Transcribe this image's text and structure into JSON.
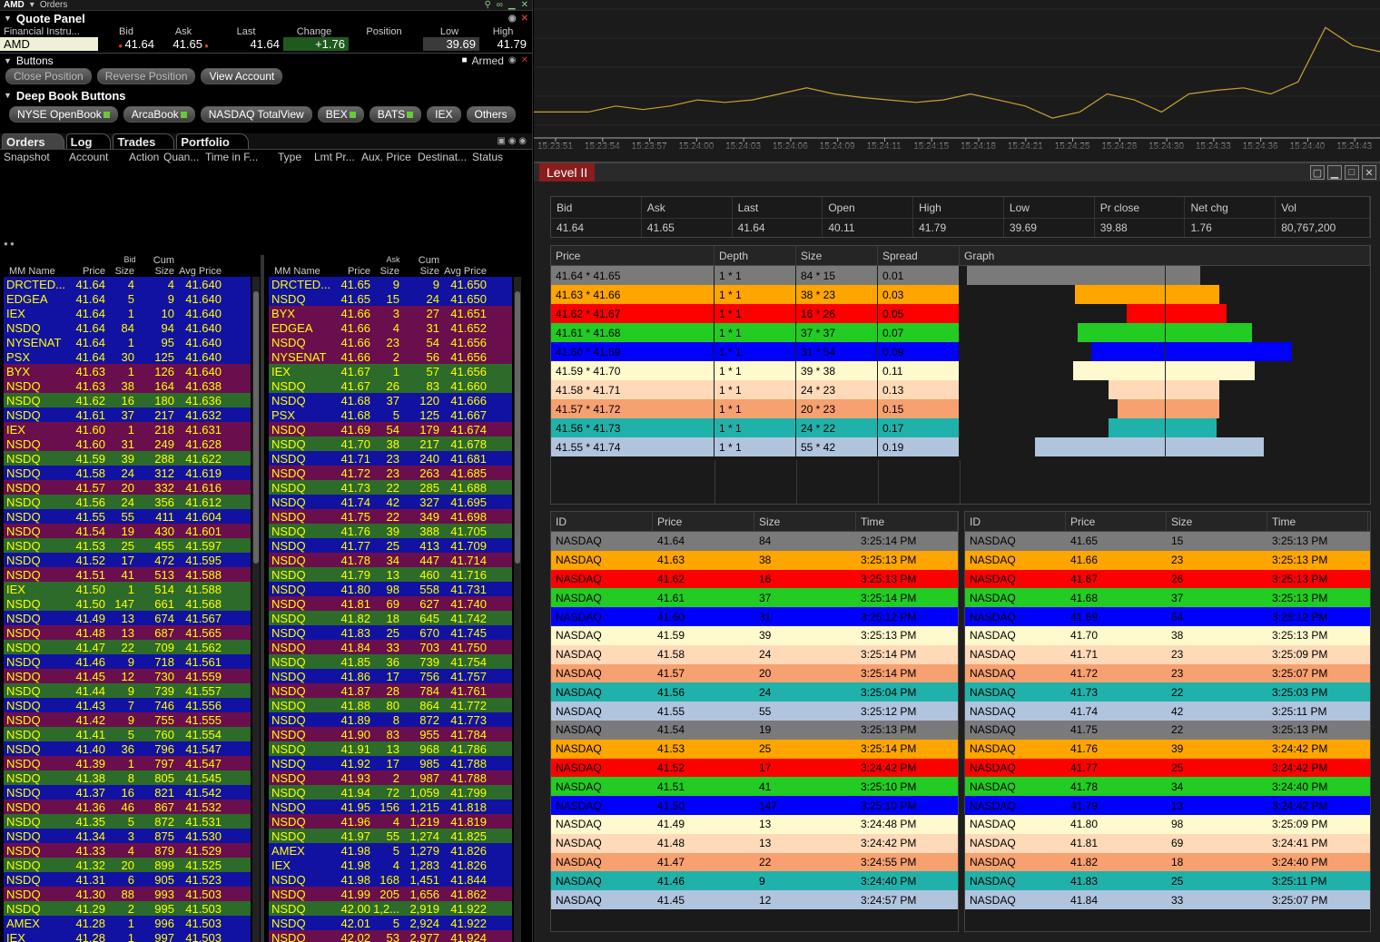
{
  "window": {
    "symbol": "AMD",
    "title": "Orders"
  },
  "quote_panel": {
    "title": "Quote Panel",
    "headers": [
      "Financial Instru...",
      "Bid",
      "Ask",
      "Last",
      "Change",
      "Position",
      "Low",
      "High"
    ],
    "row": {
      "instrument": "AMD",
      "bid": "41.64",
      "ask": "41.65",
      "last": "41.64",
      "change": "+1.76",
      "position": "",
      "low": "39.69",
      "high": "41.79"
    }
  },
  "buttons": {
    "title": "Buttons",
    "armed": "Armed",
    "close": "Close Position",
    "reverse": "Reverse Position",
    "view": "View Account"
  },
  "deep_book": {
    "title": "Deep Book Buttons",
    "items": [
      "NYSE OpenBook",
      "ArcaBook",
      "NASDAQ TotalView",
      "BEX",
      "BATS",
      "IEX",
      "Others"
    ]
  },
  "order_tabs": [
    "Orders",
    "Log",
    "Trades",
    "Portfolio"
  ],
  "order_headers": [
    "Snapshot",
    "Account",
    "Action",
    "Quan...",
    "Time in F...",
    "Type",
    "Lmt Pr...",
    "Aux. Price",
    "Destinat...",
    "Status"
  ],
  "book_headers": [
    "MM Name",
    "Price",
    "Size",
    "Cum Size",
    "Avg Price"
  ],
  "bid_label": "Bid",
  "ask_label": "Ask",
  "bid_rows": [
    [
      "DRCTED...",
      "41.64",
      "4",
      "4",
      "41.640",
      "blue"
    ],
    [
      "EDGEA",
      "41.64",
      "5",
      "9",
      "41.640",
      "blue"
    ],
    [
      "IEX",
      "41.64",
      "1",
      "10",
      "41.640",
      "blue"
    ],
    [
      "NSDQ",
      "41.64",
      "84",
      "94",
      "41.640",
      "blue"
    ],
    [
      "NYSENAT",
      "41.64",
      "1",
      "95",
      "41.640",
      "blue"
    ],
    [
      "PSX",
      "41.64",
      "30",
      "125",
      "41.640",
      "blue"
    ],
    [
      "BYX",
      "41.63",
      "1",
      "126",
      "41.640",
      "purple"
    ],
    [
      "NSDQ",
      "41.63",
      "38",
      "164",
      "41.638",
      "purple"
    ],
    [
      "NSDQ",
      "41.62",
      "16",
      "180",
      "41.636",
      "green"
    ],
    [
      "NSDQ",
      "41.61",
      "37",
      "217",
      "41.632",
      "blue"
    ],
    [
      "IEX",
      "41.60",
      "1",
      "218",
      "41.631",
      "purple"
    ],
    [
      "NSDQ",
      "41.60",
      "31",
      "249",
      "41.628",
      "purple"
    ],
    [
      "NSDQ",
      "41.59",
      "39",
      "288",
      "41.622",
      "green"
    ],
    [
      "NSDQ",
      "41.58",
      "24",
      "312",
      "41.619",
      "blue"
    ],
    [
      "NSDQ",
      "41.57",
      "20",
      "332",
      "41.616",
      "purple"
    ],
    [
      "NSDQ",
      "41.56",
      "24",
      "356",
      "41.612",
      "green"
    ],
    [
      "NSDQ",
      "41.55",
      "55",
      "411",
      "41.604",
      "blue"
    ],
    [
      "NSDQ",
      "41.54",
      "19",
      "430",
      "41.601",
      "purple"
    ],
    [
      "NSDQ",
      "41.53",
      "25",
      "455",
      "41.597",
      "green"
    ],
    [
      "NSDQ",
      "41.52",
      "17",
      "472",
      "41.595",
      "blue"
    ],
    [
      "NSDQ",
      "41.51",
      "41",
      "513",
      "41.588",
      "purple"
    ],
    [
      "IEX",
      "41.50",
      "1",
      "514",
      "41.588",
      "green"
    ],
    [
      "NSDQ",
      "41.50",
      "147",
      "661",
      "41.568",
      "green"
    ],
    [
      "NSDQ",
      "41.49",
      "13",
      "674",
      "41.567",
      "blue"
    ],
    [
      "NSDQ",
      "41.48",
      "13",
      "687",
      "41.565",
      "purple"
    ],
    [
      "NSDQ",
      "41.47",
      "22",
      "709",
      "41.562",
      "green"
    ],
    [
      "NSDQ",
      "41.46",
      "9",
      "718",
      "41.561",
      "blue"
    ],
    [
      "NSDQ",
      "41.45",
      "12",
      "730",
      "41.559",
      "purple"
    ],
    [
      "NSDQ",
      "41.44",
      "9",
      "739",
      "41.557",
      "green"
    ],
    [
      "NSDQ",
      "41.43",
      "7",
      "746",
      "41.556",
      "blue"
    ],
    [
      "NSDQ",
      "41.42",
      "9",
      "755",
      "41.555",
      "purple"
    ],
    [
      "NSDQ",
      "41.41",
      "5",
      "760",
      "41.554",
      "green"
    ],
    [
      "NSDQ",
      "41.40",
      "36",
      "796",
      "41.547",
      "blue"
    ],
    [
      "NSDQ",
      "41.39",
      "1",
      "797",
      "41.547",
      "purple"
    ],
    [
      "NSDQ",
      "41.38",
      "8",
      "805",
      "41.545",
      "green"
    ],
    [
      "NSDQ",
      "41.37",
      "16",
      "821",
      "41.542",
      "blue"
    ],
    [
      "NSDQ",
      "41.36",
      "46",
      "867",
      "41.532",
      "purple"
    ],
    [
      "NSDQ",
      "41.35",
      "5",
      "872",
      "41.531",
      "green"
    ],
    [
      "NSDQ",
      "41.34",
      "3",
      "875",
      "41.530",
      "blue"
    ],
    [
      "NSDQ",
      "41.33",
      "4",
      "879",
      "41.529",
      "purple"
    ],
    [
      "NSDQ",
      "41.32",
      "20",
      "899",
      "41.525",
      "green"
    ],
    [
      "NSDQ",
      "41.31",
      "6",
      "905",
      "41.523",
      "blue"
    ],
    [
      "NSDQ",
      "41.30",
      "88",
      "993",
      "41.503",
      "purple"
    ],
    [
      "NSDQ",
      "41.29",
      "2",
      "995",
      "41.503",
      "green"
    ],
    [
      "AMEX",
      "41.28",
      "1",
      "996",
      "41.503",
      "blue"
    ],
    [
      "IEX",
      "41.28",
      "1",
      "997",
      "41.503",
      "blue"
    ]
  ],
  "ask_rows": [
    [
      "DRCTED...",
      "41.65",
      "9",
      "9",
      "41.650",
      "blue"
    ],
    [
      "NSDQ",
      "41.65",
      "15",
      "24",
      "41.650",
      "blue"
    ],
    [
      "BYX",
      "41.66",
      "3",
      "27",
      "41.651",
      "purple"
    ],
    [
      "EDGEA",
      "41.66",
      "4",
      "31",
      "41.652",
      "purple"
    ],
    [
      "NSDQ",
      "41.66",
      "23",
      "54",
      "41.656",
      "purple"
    ],
    [
      "NYSENAT",
      "41.66",
      "2",
      "56",
      "41.656",
      "purple"
    ],
    [
      "IEX",
      "41.67",
      "1",
      "57",
      "41.656",
      "green"
    ],
    [
      "NSDQ",
      "41.67",
      "26",
      "83",
      "41.660",
      "green"
    ],
    [
      "NSDQ",
      "41.68",
      "37",
      "120",
      "41.666",
      "blue"
    ],
    [
      "PSX",
      "41.68",
      "5",
      "125",
      "41.667",
      "blue"
    ],
    [
      "NSDQ",
      "41.69",
      "54",
      "179",
      "41.674",
      "purple"
    ],
    [
      "NSDQ",
      "41.70",
      "38",
      "217",
      "41.678",
      "green"
    ],
    [
      "NSDQ",
      "41.71",
      "23",
      "240",
      "41.681",
      "blue"
    ],
    [
      "NSDQ",
      "41.72",
      "23",
      "263",
      "41.685",
      "purple"
    ],
    [
      "NSDQ",
      "41.73",
      "22",
      "285",
      "41.688",
      "green"
    ],
    [
      "NSDQ",
      "41.74",
      "42",
      "327",
      "41.695",
      "blue"
    ],
    [
      "NSDQ",
      "41.75",
      "22",
      "349",
      "41.698",
      "purple"
    ],
    [
      "NSDQ",
      "41.76",
      "39",
      "388",
      "41.705",
      "green"
    ],
    [
      "NSDQ",
      "41.77",
      "25",
      "413",
      "41.709",
      "blue"
    ],
    [
      "NSDQ",
      "41.78",
      "34",
      "447",
      "41.714",
      "purple"
    ],
    [
      "NSDQ",
      "41.79",
      "13",
      "460",
      "41.716",
      "green"
    ],
    [
      "NSDQ",
      "41.80",
      "98",
      "558",
      "41.731",
      "blue"
    ],
    [
      "NSDQ",
      "41.81",
      "69",
      "627",
      "41.740",
      "purple"
    ],
    [
      "NSDQ",
      "41.82",
      "18",
      "645",
      "41.742",
      "green"
    ],
    [
      "NSDQ",
      "41.83",
      "25",
      "670",
      "41.745",
      "blue"
    ],
    [
      "NSDQ",
      "41.84",
      "33",
      "703",
      "41.750",
      "purple"
    ],
    [
      "NSDQ",
      "41.85",
      "36",
      "739",
      "41.754",
      "green"
    ],
    [
      "NSDQ",
      "41.86",
      "17",
      "756",
      "41.757",
      "blue"
    ],
    [
      "NSDQ",
      "41.87",
      "28",
      "784",
      "41.761",
      "purple"
    ],
    [
      "NSDQ",
      "41.88",
      "80",
      "864",
      "41.772",
      "green"
    ],
    [
      "NSDQ",
      "41.89",
      "8",
      "872",
      "41.773",
      "blue"
    ],
    [
      "NSDQ",
      "41.90",
      "83",
      "955",
      "41.784",
      "purple"
    ],
    [
      "NSDQ",
      "41.91",
      "13",
      "968",
      "41.786",
      "green"
    ],
    [
      "NSDQ",
      "41.92",
      "17",
      "985",
      "41.788",
      "blue"
    ],
    [
      "NSDQ",
      "41.93",
      "2",
      "987",
      "41.788",
      "purple"
    ],
    [
      "NSDQ",
      "41.94",
      "72",
      "1,059",
      "41.799",
      "green"
    ],
    [
      "NSDQ",
      "41.95",
      "156",
      "1,215",
      "41.818",
      "blue"
    ],
    [
      "NSDQ",
      "41.96",
      "4",
      "1,219",
      "41.819",
      "purple"
    ],
    [
      "NSDQ",
      "41.97",
      "55",
      "1,274",
      "41.825",
      "green"
    ],
    [
      "AMEX",
      "41.98",
      "5",
      "1,279",
      "41.826",
      "blue"
    ],
    [
      "IEX",
      "41.98",
      "4",
      "1,283",
      "41.826",
      "blue"
    ],
    [
      "NSDQ",
      "41.98",
      "168",
      "1,451",
      "41.844",
      "blue"
    ],
    [
      "NSDQ",
      "41.99",
      "205",
      "1,656",
      "41.862",
      "purple"
    ],
    [
      "NSDQ",
      "42.00",
      "1,2...",
      "2,919",
      "41.922",
      "green"
    ],
    [
      "NSDQ",
      "42.01",
      "5",
      "2,924",
      "41.922",
      "blue"
    ],
    [
      "NSDQ",
      "42.02",
      "53",
      "2,977",
      "41.924",
      "purple"
    ]
  ],
  "chart": {
    "x_labels": [
      "15:23:51",
      "15:23:54",
      "15:23:57",
      "15:24:00",
      "15:24:03",
      "15:24:06",
      "15:24:09",
      "15:24:11",
      "15:24:15",
      "15:24:18",
      "15:24:21",
      "15:24:25",
      "15:24:28",
      "15:24:30",
      "15:24:33",
      "15:24:36",
      "15:24:40",
      "15:24:43"
    ],
    "values": [
      0.2,
      0.2,
      0.2,
      0.25,
      0.22,
      0.25,
      0.3,
      0.28,
      0.3,
      0.35,
      0.4,
      0.35,
      0.32,
      0.3,
      0.28,
      0.3,
      0.35,
      0.3,
      0.25,
      0.15,
      0.2,
      0.35,
      0.3,
      0.2,
      0.35,
      0.38,
      0.4,
      0.35,
      0.45,
      0.9,
      0.75,
      0.7
    ],
    "line_color": "#c9a030"
  },
  "level2": {
    "title": "Level II",
    "summary_headers": [
      "Bid",
      "Ask",
      "Last",
      "Open",
      "High",
      "Low",
      "Pr close",
      "Net chg",
      "Vol"
    ],
    "summary_values": [
      "41.64",
      "41.65",
      "41.64",
      "40.11",
      "41.79",
      "39.69",
      "39.88",
      "1.76",
      "80,767,200"
    ],
    "depth_headers": [
      "Price",
      "Depth",
      "Size",
      "Spread",
      "Graph"
    ],
    "depth_rows": [
      {
        "price": "41.64 * 41.65",
        "depth": "1 * 1",
        "size": "84 * 15",
        "spread": "0.01",
        "bid": 84,
        "ask": 15,
        "color": "gray"
      },
      {
        "price": "41.63 * 41.66",
        "depth": "1 * 1",
        "size": "38 * 23",
        "spread": "0.03",
        "bid": 38,
        "ask": 23,
        "color": "orange"
      },
      {
        "price": "41.62 * 41.67",
        "depth": "1 * 1",
        "size": "16 * 26",
        "spread": "0.05",
        "bid": 16,
        "ask": 26,
        "color": "red"
      },
      {
        "price": "41.61 * 41.68",
        "depth": "1 * 1",
        "size": "37 * 37",
        "spread": "0.07",
        "bid": 37,
        "ask": 37,
        "color": "green"
      },
      {
        "price": "41.60 * 41.69",
        "depth": "1 * 1",
        "size": "31 * 54",
        "spread": "0.09",
        "bid": 31,
        "ask": 54,
        "color": "blue"
      },
      {
        "price": "41.59 * 41.70",
        "depth": "1 * 1",
        "size": "39 * 38",
        "spread": "0.11",
        "bid": 39,
        "ask": 38,
        "color": "cream"
      },
      {
        "price": "41.58 * 41.71",
        "depth": "1 * 1",
        "size": "24 * 23",
        "spread": "0.13",
        "bid": 24,
        "ask": 23,
        "color": "peach"
      },
      {
        "price": "41.57 * 41.72",
        "depth": "1 * 1",
        "size": "20 * 23",
        "spread": "0.15",
        "bid": 20,
        "ask": 23,
        "color": "salmon"
      },
      {
        "price": "41.56 * 41.73",
        "depth": "1 * 1",
        "size": "24 * 22",
        "spread": "0.17",
        "bid": 24,
        "ask": 22,
        "color": "teal"
      },
      {
        "price": "41.55 * 41.74",
        "depth": "1 * 1",
        "size": "55 * 42",
        "spread": "0.19",
        "bid": 55,
        "ask": 42,
        "color": "steel"
      }
    ],
    "trade_headers": [
      "ID",
      "Price",
      "Size",
      "Time"
    ],
    "bid_trades": [
      [
        "NASDAQ",
        "41.64",
        "84",
        "3:25:14 PM",
        "gray"
      ],
      [
        "NASDAQ",
        "41.63",
        "38",
        "3:25:13 PM",
        "orange"
      ],
      [
        "NASDAQ",
        "41.62",
        "16",
        "3:25:13 PM",
        "red"
      ],
      [
        "NASDAQ",
        "41.61",
        "37",
        "3:25:14 PM",
        "green"
      ],
      [
        "NASDAQ",
        "41.60",
        "31",
        "3:25:12 PM",
        "blue"
      ],
      [
        "NASDAQ",
        "41.59",
        "39",
        "3:25:13 PM",
        "cream"
      ],
      [
        "NASDAQ",
        "41.58",
        "24",
        "3:25:14 PM",
        "peach"
      ],
      [
        "NASDAQ",
        "41.57",
        "20",
        "3:25:14 PM",
        "salmon"
      ],
      [
        "NASDAQ",
        "41.56",
        "24",
        "3:25:04 PM",
        "teal"
      ],
      [
        "NASDAQ",
        "41.55",
        "55",
        "3:25:12 PM",
        "steel"
      ],
      [
        "NASDAQ",
        "41.54",
        "19",
        "3:25:13 PM",
        "gray"
      ],
      [
        "NASDAQ",
        "41.53",
        "25",
        "3:25:14 PM",
        "orange"
      ],
      [
        "NASDAQ",
        "41.52",
        "17",
        "3:24:42 PM",
        "red"
      ],
      [
        "NASDAQ",
        "41.51",
        "41",
        "3:25:10 PM",
        "green"
      ],
      [
        "NASDAQ",
        "41.50",
        "147",
        "3:25:10 PM",
        "blue"
      ],
      [
        "NASDAQ",
        "41.49",
        "13",
        "3:24:48 PM",
        "cream"
      ],
      [
        "NASDAQ",
        "41.48",
        "13",
        "3:24:42 PM",
        "peach"
      ],
      [
        "NASDAQ",
        "41.47",
        "22",
        "3:24:55 PM",
        "salmon"
      ],
      [
        "NASDAQ",
        "41.46",
        "9",
        "3:24:40 PM",
        "teal"
      ],
      [
        "NASDAQ",
        "41.45",
        "12",
        "3:24:57 PM",
        "steel"
      ]
    ],
    "ask_trades": [
      [
        "NASDAQ",
        "41.65",
        "15",
        "3:25:13 PM",
        "gray"
      ],
      [
        "NASDAQ",
        "41.66",
        "23",
        "3:25:13 PM",
        "orange"
      ],
      [
        "NASDAQ",
        "41.67",
        "26",
        "3:25:13 PM",
        "red"
      ],
      [
        "NASDAQ",
        "41.68",
        "37",
        "3:25:13 PM",
        "green"
      ],
      [
        "NASDAQ",
        "41.69",
        "54",
        "3:25:12 PM",
        "blue"
      ],
      [
        "NASDAQ",
        "41.70",
        "38",
        "3:25:13 PM",
        "cream"
      ],
      [
        "NASDAQ",
        "41.71",
        "23",
        "3:25:09 PM",
        "peach"
      ],
      [
        "NASDAQ",
        "41.72",
        "23",
        "3:25:07 PM",
        "salmon"
      ],
      [
        "NASDAQ",
        "41.73",
        "22",
        "3:25:03 PM",
        "teal"
      ],
      [
        "NASDAQ",
        "41.74",
        "42",
        "3:25:11 PM",
        "steel"
      ],
      [
        "NASDAQ",
        "41.75",
        "22",
        "3:25:13 PM",
        "gray"
      ],
      [
        "NASDAQ",
        "41.76",
        "39",
        "3:24:42 PM",
        "orange"
      ],
      [
        "NASDAQ",
        "41.77",
        "25",
        "3:24:42 PM",
        "red"
      ],
      [
        "NASDAQ",
        "41.78",
        "34",
        "3:24:40 PM",
        "green"
      ],
      [
        "NASDAQ",
        "41.79",
        "13",
        "3:24:42 PM",
        "blue"
      ],
      [
        "NASDAQ",
        "41.80",
        "98",
        "3:25:09 PM",
        "cream"
      ],
      [
        "NASDAQ",
        "41.81",
        "69",
        "3:24:41 PM",
        "peach"
      ],
      [
        "NASDAQ",
        "41.82",
        "18",
        "3:24:40 PM",
        "salmon"
      ],
      [
        "NASDAQ",
        "41.83",
        "25",
        "3:25:11 PM",
        "teal"
      ],
      [
        "NASDAQ",
        "41.84",
        "33",
        "3:25:07 PM",
        "steel"
      ]
    ]
  }
}
